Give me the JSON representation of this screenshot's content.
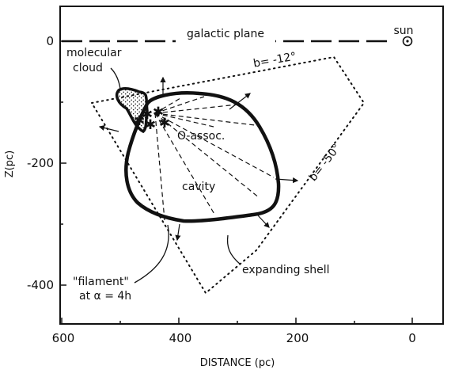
{
  "axes": {
    "x_title": "DISTANCE (pc)",
    "y_title": "Z(pc)",
    "x_ticks": [
      "600",
      "400",
      "200",
      "0"
    ],
    "y_ticks": [
      "0",
      "-200",
      "-400"
    ]
  },
  "labels": {
    "galactic_plane": "galactic plane",
    "sun": "sun",
    "molecular_cloud_line1": "molecular",
    "molecular_cloud_line2": "cloud",
    "b_minus_12": "b= -12°",
    "b_minus_50": "b= -50°",
    "o_assoc": "O-assoc.",
    "cavity": "cavity",
    "filament_line1": "\"filament\"",
    "filament_line2": "at α = 4h",
    "expanding_shell": "expanding shell"
  }
}
